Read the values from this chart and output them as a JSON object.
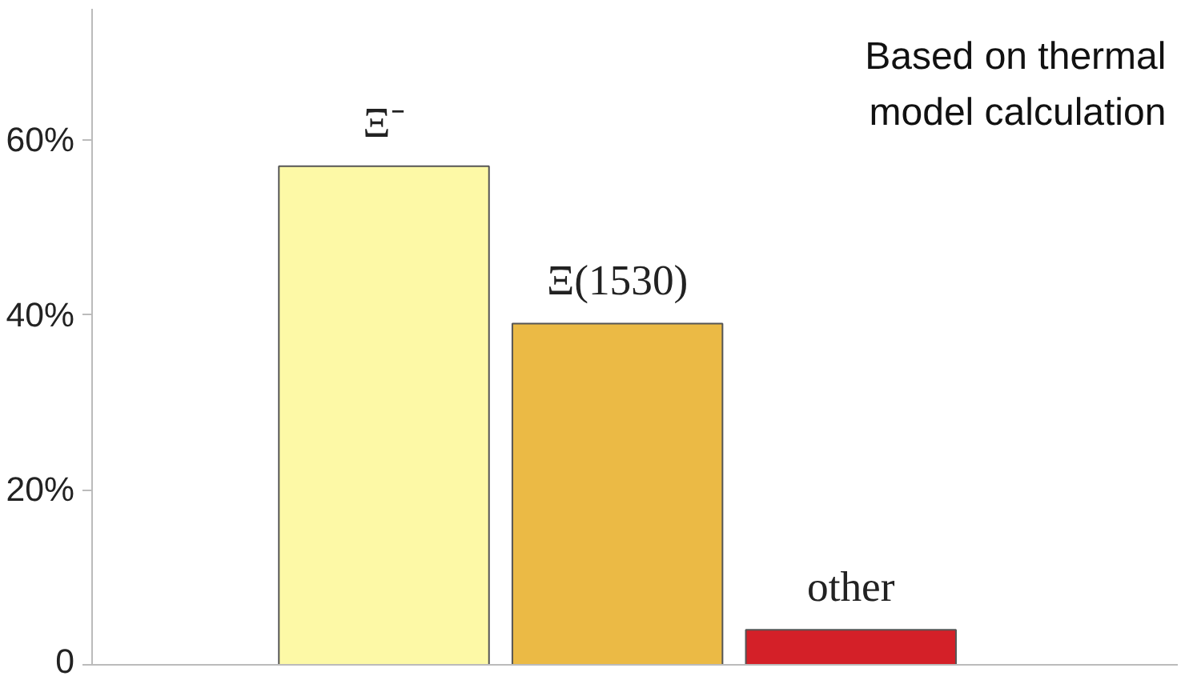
{
  "chart_data": {
    "type": "bar",
    "categories": [
      "Ξ⁻",
      "Ξ(1530)",
      "other"
    ],
    "values": [
      57,
      39,
      4
    ],
    "colors": [
      "#fdf9a6",
      "#ebba45",
      "#d42028"
    ],
    "ylim": [
      0,
      75
    ],
    "yticks": [
      {
        "value": 0,
        "label": "0"
      },
      {
        "value": 20,
        "label": "20%"
      },
      {
        "value": 40,
        "label": "40%"
      },
      {
        "value": 60,
        "label": "60%"
      }
    ],
    "grid": false,
    "annotations": [
      "Based on thermal model calculation"
    ]
  }
}
